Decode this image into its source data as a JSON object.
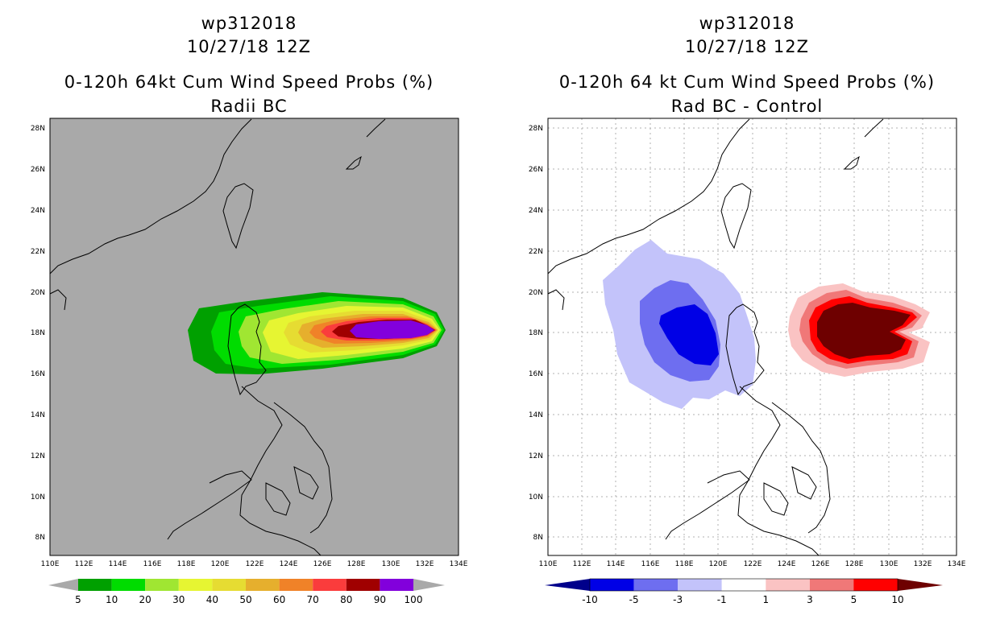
{
  "left": {
    "title_line1": "wp312018",
    "title_line2": "10/27/18 12Z",
    "title_line3": "0-120h 64kt Cum Wind Speed Probs (%)",
    "title_line4": "Radii BC",
    "colorbar_labels": [
      "5",
      "10",
      "20",
      "30",
      "40",
      "50",
      "60",
      "70",
      "80",
      "90",
      "100"
    ],
    "colorbar_colors": [
      "#00a000",
      "#00dc00",
      "#a0e632",
      "#e6f532",
      "#e6dc32",
      "#e6af2d",
      "#f08228",
      "#fa3c3c",
      "#a00000",
      "#8200dc"
    ],
    "background_color": "#a9a9a9"
  },
  "right": {
    "title_line1": "wp312018",
    "title_line2": "10/27/18 12Z",
    "title_line3": "0-120h 64 kt Cum Wind Speed Probs (%)",
    "title_line4": "Rad BC - Control",
    "colorbar_labels": [
      "-10",
      "-5",
      "-3",
      "-1",
      "1",
      "3",
      "5",
      "10"
    ],
    "colorbar_colors": [
      "#0000e6",
      "#6e6ef0",
      "#c3c3fa",
      "#ffffff",
      "#fac3c3",
      "#f07878",
      "#ff0000"
    ],
    "end_colors": [
      "#00008b",
      "#6e0000"
    ]
  },
  "map": {
    "lat_labels": [
      "28N",
      "26N",
      "24N",
      "22N",
      "20N",
      "18N",
      "16N",
      "14N",
      "12N",
      "10N",
      "8N"
    ],
    "lon_labels": [
      "110E",
      "112E",
      "114E",
      "116E",
      "118E",
      "120E",
      "122E",
      "124E",
      "126E",
      "128E",
      "130E",
      "132E",
      "134E"
    ]
  }
}
